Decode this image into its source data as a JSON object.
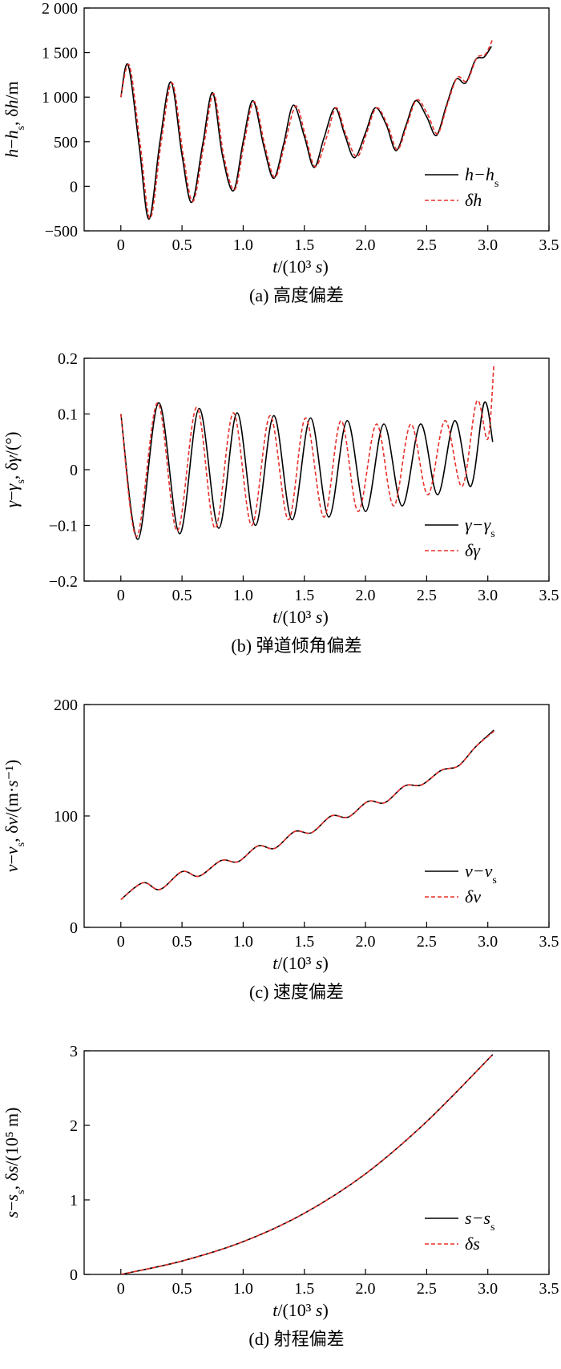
{
  "chart_data": [
    {
      "type": "line",
      "caption": "(a) 高度偏差",
      "xlabel": "t/(10³ s)",
      "ylabel": "h−hs, δh/m",
      "xlim": [
        -0.3,
        3.5
      ],
      "ylim": [
        -500,
        2000
      ],
      "xticks": [
        0,
        0.5,
        1.0,
        1.5,
        2.0,
        2.5,
        3.0,
        3.5
      ],
      "xtick_labels": [
        "0",
        "0.5",
        "1.0",
        "1.5",
        "2.0",
        "2.5",
        "3.0",
        "3.5"
      ],
      "yticks": [
        -500,
        0,
        500,
        1000,
        1500,
        2000
      ],
      "ytick_labels": [
        "−500",
        "0",
        "500",
        "1 000",
        "1 500",
        "2 000"
      ],
      "legend_position": "lower-right",
      "series": [
        {
          "name": "h−hs",
          "color": "#000000",
          "dash": "solid",
          "x": [
            0,
            0.06,
            0.15,
            0.23,
            0.32,
            0.41,
            0.5,
            0.58,
            0.67,
            0.75,
            0.83,
            0.92,
            1.0,
            1.08,
            1.17,
            1.25,
            1.33,
            1.41,
            1.5,
            1.58,
            1.66,
            1.75,
            1.83,
            1.91,
            2.0,
            2.08,
            2.17,
            2.25,
            2.33,
            2.41,
            2.5,
            2.58,
            2.66,
            2.74,
            2.82,
            2.9,
            2.97,
            3.03
          ],
          "y": [
            1000,
            1360,
            450,
            -370,
            500,
            1170,
            350,
            -180,
            480,
            1050,
            350,
            -50,
            500,
            960,
            440,
            90,
            470,
            910,
            560,
            210,
            540,
            880,
            580,
            320,
            600,
            880,
            690,
            400,
            680,
            960,
            780,
            570,
            900,
            1200,
            1160,
            1420,
            1450,
            1570
          ]
        },
        {
          "name": "δh",
          "color": "#e8302a",
          "dash": "dashed",
          "x": [
            0,
            0.07,
            0.16,
            0.24,
            0.33,
            0.42,
            0.51,
            0.59,
            0.68,
            0.76,
            0.84,
            0.93,
            1.01,
            1.09,
            1.18,
            1.26,
            1.34,
            1.43,
            1.51,
            1.59,
            1.68,
            1.76,
            1.84,
            1.93,
            2.01,
            2.09,
            2.18,
            2.26,
            2.34,
            2.42,
            2.51,
            2.59,
            2.67,
            2.75,
            2.83,
            2.91,
            2.98,
            3.04
          ],
          "y": [
            1000,
            1355,
            450,
            -360,
            500,
            1160,
            350,
            -170,
            480,
            1040,
            350,
            -40,
            500,
            950,
            440,
            100,
            470,
            900,
            560,
            220,
            540,
            880,
            580,
            330,
            600,
            880,
            690,
            410,
            690,
            970,
            800,
            590,
            920,
            1220,
            1180,
            1440,
            1480,
            1650
          ]
        }
      ]
    },
    {
      "type": "line",
      "caption": "(b) 弹道倾角偏差",
      "xlabel": "t/(10³ s)",
      "ylabel": "γ−γs, δγ/(°)",
      "xlim": [
        -0.3,
        3.5
      ],
      "ylim": [
        -0.2,
        0.2
      ],
      "xticks": [
        0,
        0.5,
        1.0,
        1.5,
        2.0,
        2.5,
        3.0,
        3.5
      ],
      "xtick_labels": [
        "0",
        "0.5",
        "1.0",
        "1.5",
        "2.0",
        "2.5",
        "3.0",
        "3.5"
      ],
      "yticks": [
        -0.2,
        -0.1,
        0,
        0.1,
        0.2
      ],
      "ytick_labels": [
        "−0.2",
        "−0.1",
        "0",
        "0.1",
        "0.2"
      ],
      "legend_position": "lower-right",
      "series": [
        {
          "name": "γ−γs",
          "color": "#000000",
          "dash": "solid",
          "x": [
            0,
            0.14,
            0.31,
            0.48,
            0.64,
            0.8,
            0.95,
            1.1,
            1.25,
            1.4,
            1.55,
            1.7,
            1.85,
            2.0,
            2.15,
            2.3,
            2.45,
            2.59,
            2.73,
            2.86,
            2.97,
            3.04
          ],
          "y": [
            0.1,
            -0.125,
            0.12,
            -0.115,
            0.11,
            -0.105,
            0.102,
            -0.1,
            0.097,
            -0.09,
            0.093,
            -0.085,
            0.088,
            -0.075,
            0.082,
            -0.065,
            0.082,
            -0.045,
            0.088,
            -0.03,
            0.12,
            0.05
          ]
        },
        {
          "name": "δγ",
          "color": "#e8302a",
          "dash": "dashed",
          "x": [
            0,
            0.13,
            0.3,
            0.46,
            0.62,
            0.77,
            0.92,
            1.07,
            1.22,
            1.37,
            1.51,
            1.66,
            1.8,
            1.94,
            2.09,
            2.23,
            2.37,
            2.51,
            2.65,
            2.79,
            2.91,
            3.0,
            3.05
          ],
          "y": [
            0.1,
            -0.12,
            0.12,
            -0.11,
            0.112,
            -0.105,
            0.102,
            -0.1,
            0.097,
            -0.09,
            0.093,
            -0.085,
            0.088,
            -0.075,
            0.082,
            -0.065,
            0.082,
            -0.045,
            0.088,
            -0.03,
            0.123,
            0.055,
            0.19
          ]
        }
      ]
    },
    {
      "type": "line",
      "caption": "(c) 速度偏差",
      "xlabel": "t/(10³ s)",
      "ylabel": "v−vs, δv/(m·s⁻¹)",
      "xlim": [
        -0.3,
        3.5
      ],
      "ylim": [
        0,
        200
      ],
      "xticks": [
        0,
        0.5,
        1.0,
        1.5,
        2.0,
        2.5,
        3.0,
        3.5
      ],
      "xtick_labels": [
        "0",
        "0.5",
        "1.0",
        "1.5",
        "2.0",
        "2.5",
        "3.0",
        "3.5"
      ],
      "yticks": [
        0,
        100,
        200
      ],
      "ytick_labels": [
        "0",
        "100",
        "200"
      ],
      "legend_position": "lower-right",
      "series": [
        {
          "name": "v−vs",
          "color": "#000000",
          "dash": "solid",
          "x": [
            0,
            0.18,
            0.32,
            0.5,
            0.64,
            0.82,
            0.96,
            1.12,
            1.26,
            1.42,
            1.56,
            1.72,
            1.86,
            2.02,
            2.16,
            2.32,
            2.46,
            2.62,
            2.76,
            2.9,
            3.05
          ],
          "y": [
            25,
            40,
            34,
            50,
            46,
            60,
            59,
            73,
            71,
            86,
            85,
            100,
            99,
            113,
            112,
            127,
            128,
            141,
            145,
            162,
            177
          ]
        },
        {
          "name": "δv",
          "color": "#e8302a",
          "dash": "dashed",
          "x": [
            0,
            0.18,
            0.32,
            0.5,
            0.64,
            0.82,
            0.96,
            1.12,
            1.26,
            1.42,
            1.56,
            1.72,
            1.86,
            2.02,
            2.16,
            2.32,
            2.46,
            2.62,
            2.76,
            2.9,
            3.05
          ],
          "y": [
            25,
            40,
            34,
            50,
            46,
            60,
            59,
            73,
            71,
            86,
            85,
            100,
            99,
            113,
            112,
            127,
            128,
            141,
            145,
            162,
            176
          ]
        }
      ]
    },
    {
      "type": "line",
      "caption": "(d) 射程偏差",
      "xlabel": "t/(10³ s)",
      "ylabel": "s−ss, δs/(10⁵ m)",
      "xlim": [
        -0.3,
        3.5
      ],
      "ylim": [
        0,
        3
      ],
      "xticks": [
        0,
        0.5,
        1.0,
        1.5,
        2.0,
        2.5,
        3.0,
        3.5
      ],
      "xtick_labels": [
        "0",
        "0.5",
        "1.0",
        "1.5",
        "2.0",
        "2.5",
        "3.0",
        "3.5"
      ],
      "yticks": [
        0,
        1,
        2,
        3
      ],
      "ytick_labels": [
        "0",
        "1",
        "2",
        "3"
      ],
      "legend_position": "lower-right",
      "series": [
        {
          "name": "s−ss",
          "color": "#000000",
          "dash": "solid",
          "x": [
            0,
            0.5,
            1.0,
            1.5,
            2.0,
            2.5,
            3.04
          ],
          "y": [
            0,
            0.18,
            0.44,
            0.82,
            1.35,
            2.05,
            2.95
          ]
        },
        {
          "name": "δs",
          "color": "#e8302a",
          "dash": "dashed",
          "x": [
            0,
            0.5,
            1.0,
            1.5,
            2.0,
            2.5,
            3.04
          ],
          "y": [
            0,
            0.18,
            0.44,
            0.82,
            1.35,
            2.05,
            2.95
          ]
        }
      ]
    }
  ]
}
